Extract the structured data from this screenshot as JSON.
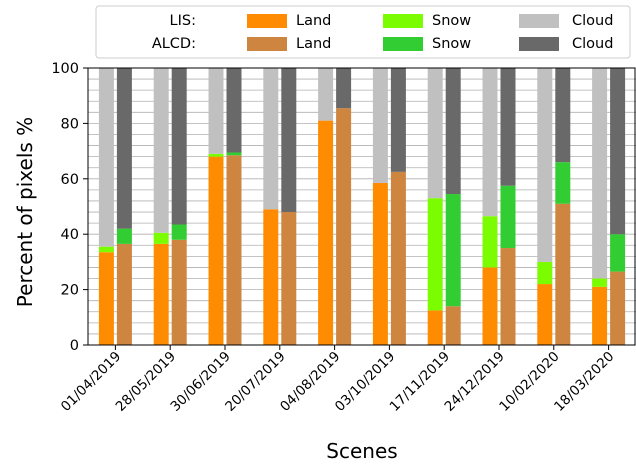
{
  "chart_data": {
    "type": "bar",
    "stacked": true,
    "paired_bars": true,
    "xlabel": "Scenes",
    "ylabel": "Percent of pixels %",
    "ylim": [
      0,
      100
    ],
    "yticks": [
      0,
      20,
      40,
      60,
      80,
      100
    ],
    "grid": "horizontal",
    "legend_position": "top",
    "categories": [
      "01/04/2019",
      "28/05/2019",
      "30/06/2019",
      "20/07/2019",
      "04/08/2019",
      "03/10/2019",
      "17/11/2019",
      "24/12/2019",
      "10/02/2020",
      "18/03/2020"
    ],
    "legend": {
      "rows": [
        {
          "label": "LIS:",
          "entries": [
            {
              "name": "Land",
              "color": "#ff8c00"
            },
            {
              "name": "Snow",
              "color": "#7cfc00"
            },
            {
              "name": "Cloud",
              "color": "#c0c0c0"
            }
          ]
        },
        {
          "label": "ALCD:",
          "entries": [
            {
              "name": "Land",
              "color": "#cd853f"
            },
            {
              "name": "Snow",
              "color": "#32cd32"
            },
            {
              "name": "Cloud",
              "color": "#696969"
            }
          ]
        }
      ]
    },
    "groups": [
      {
        "name": "LIS",
        "colors": {
          "land": "#ff8c00",
          "snow": "#7cfc00",
          "cloud": "#c0c0c0"
        },
        "land": [
          33.5,
          36.5,
          68,
          49,
          81,
          58.5,
          12.5,
          28,
          22,
          21
        ],
        "snow": [
          2,
          4,
          1,
          0,
          0,
          0,
          40.5,
          18.5,
          8,
          3
        ],
        "cloud": [
          64.5,
          59.5,
          31,
          51,
          19,
          41.5,
          47,
          53.5,
          70,
          76
        ]
      },
      {
        "name": "ALCD",
        "colors": {
          "land": "#cd853f",
          "snow": "#32cd32",
          "cloud": "#696969"
        },
        "land": [
          36.5,
          38,
          68.5,
          48,
          85.5,
          62.5,
          14,
          35,
          51,
          26.5
        ],
        "snow": [
          5.5,
          5.5,
          1,
          0,
          0,
          0,
          40.5,
          22.5,
          15,
          13.5
        ],
        "cloud": [
          58,
          56.5,
          30.5,
          52,
          14.5,
          37.5,
          45.5,
          42.5,
          34,
          60
        ]
      }
    ]
  }
}
